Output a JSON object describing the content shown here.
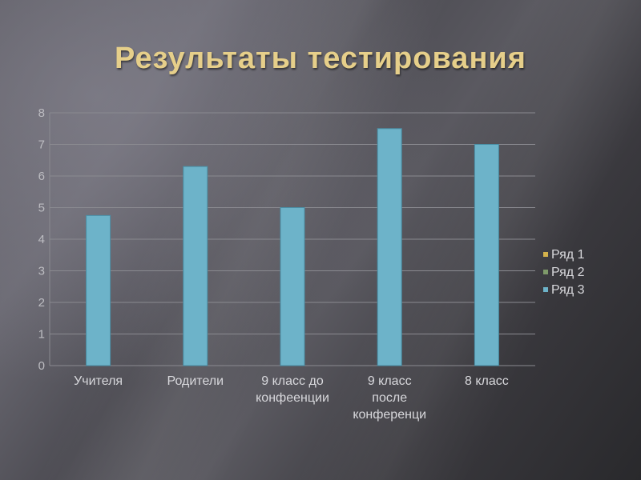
{
  "title": "Результаты тестирования",
  "chart_data": {
    "type": "bar",
    "categories": [
      [
        "Учителя"
      ],
      [
        "Родители"
      ],
      [
        "9 класс до",
        "конфеенции"
      ],
      [
        "9 класс",
        "после",
        "конференци"
      ],
      [
        "8 класс"
      ]
    ],
    "series": [
      {
        "name": "Ряд 1",
        "color": "#d4b24c",
        "values": [
          0,
          0,
          0,
          0,
          0
        ]
      },
      {
        "name": "Ряд 2",
        "color": "#7f9a6a",
        "values": [
          0,
          0,
          0,
          0,
          0
        ]
      },
      {
        "name": "Ряд 3",
        "color": "#6db3c9",
        "values": [
          4.75,
          6.3,
          5.0,
          7.5,
          7.0
        ]
      }
    ],
    "yticks": [
      "0",
      "1",
      "2",
      "3",
      "4",
      "5",
      "6",
      "7",
      "8"
    ],
    "ylim": [
      0,
      8
    ],
    "grid": true,
    "legend": "right"
  }
}
